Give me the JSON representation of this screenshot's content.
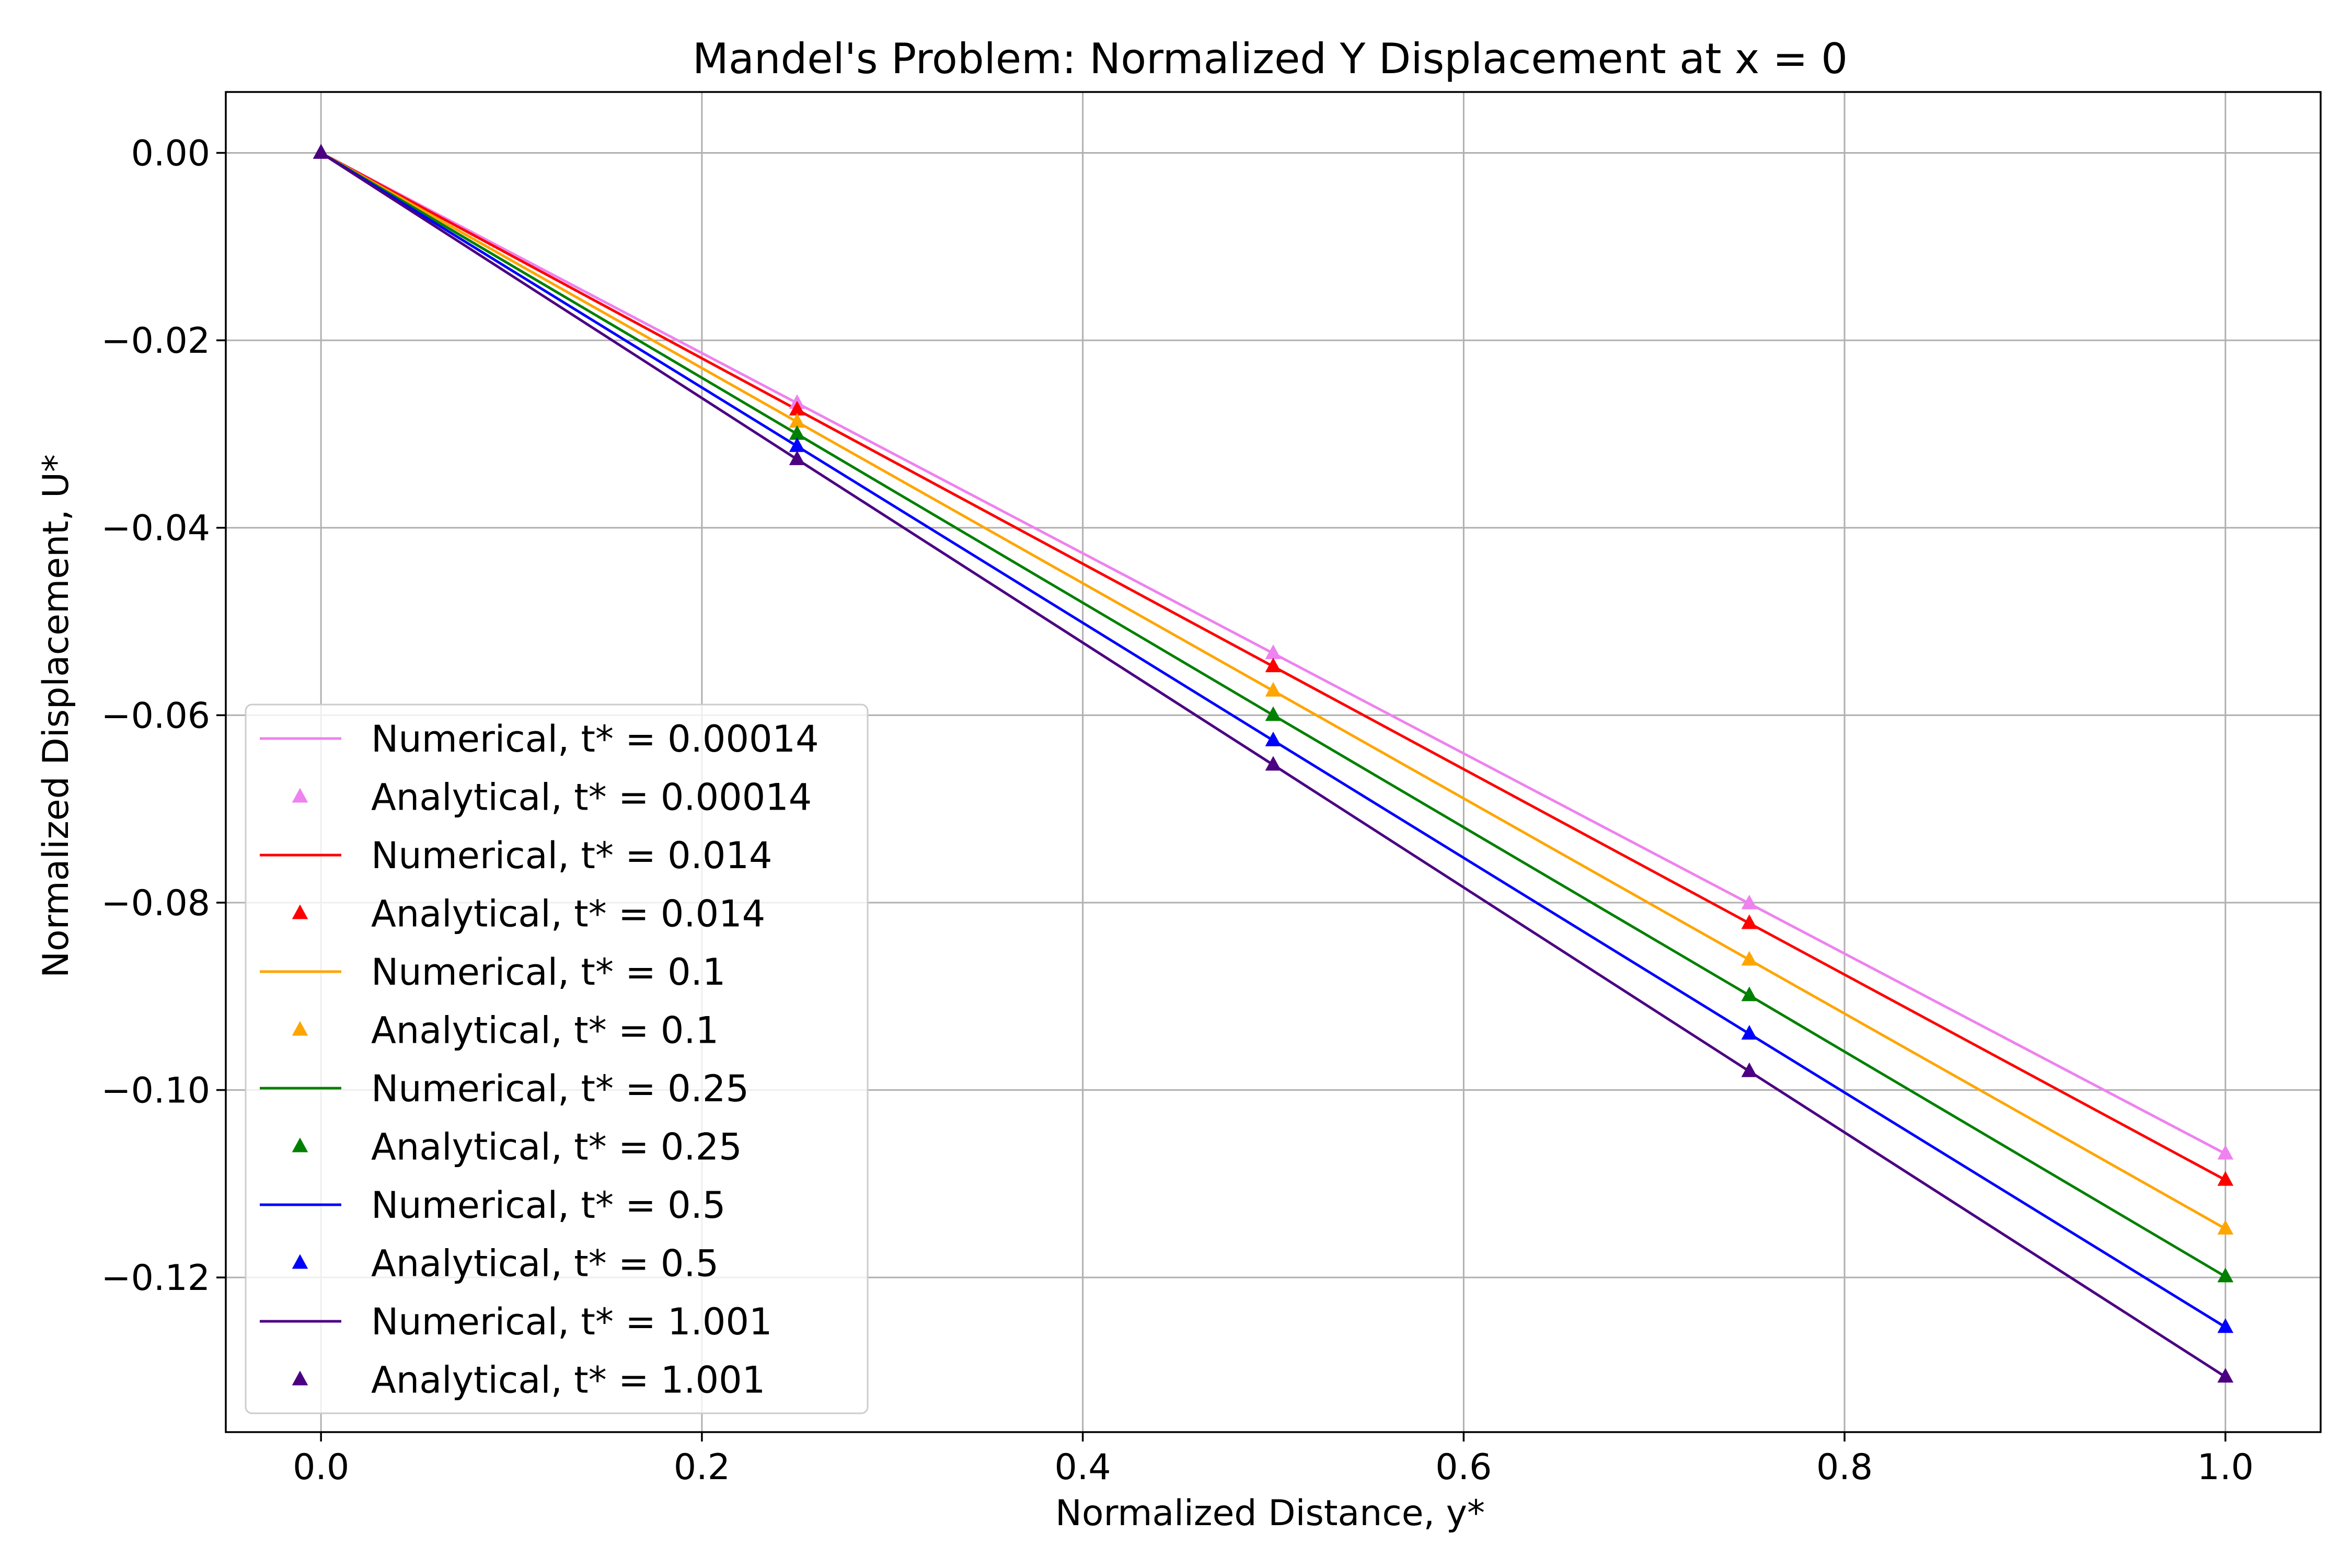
{
  "chart_data": {
    "type": "line",
    "title": "Mandel's Problem: Normalized Y Displacement at x = 0",
    "xlabel": "Normalized Distance, y*",
    "ylabel": "Normalized Displacement, U*",
    "xlim": [
      -0.05,
      1.05
    ],
    "ylim": [
      -0.1365,
      0.0065
    ],
    "xticks": [
      0.0,
      0.2,
      0.4,
      0.6,
      0.8,
      1.0
    ],
    "xtick_labels": [
      "0.0",
      "0.2",
      "0.4",
      "0.6",
      "0.8",
      "1.0"
    ],
    "yticks": [
      0.0,
      -0.02,
      -0.04,
      -0.06,
      -0.08,
      -0.1,
      -0.12
    ],
    "ytick_labels": [
      "0.00",
      "−0.02",
      "−0.04",
      "−0.06",
      "−0.08",
      "−0.10",
      "−0.12"
    ],
    "grid": true,
    "legend_position": "lower-left",
    "x": [
      0.0,
      0.25,
      0.5,
      0.75,
      1.0
    ],
    "series": [
      {
        "name": "Numerical, t* = 0.00014",
        "kind": "line",
        "color": "#ee82ee",
        "values": [
          0.0,
          -0.0267,
          -0.0534,
          -0.0801,
          -0.1068
        ]
      },
      {
        "name": "Analytical, t* = 0.00014",
        "kind": "marker",
        "marker": "triangle",
        "color": "#ee82ee",
        "values": [
          0.0,
          -0.0267,
          -0.0534,
          -0.0801,
          -0.1068
        ]
      },
      {
        "name": "Numerical, t* = 0.014",
        "kind": "line",
        "color": "#ff0000",
        "values": [
          0.0,
          -0.0274,
          -0.0548,
          -0.0822,
          -0.1096
        ]
      },
      {
        "name": "Analytical, t* = 0.014",
        "kind": "marker",
        "marker": "triangle",
        "color": "#ff0000",
        "values": [
          0.0,
          -0.0274,
          -0.0548,
          -0.0822,
          -0.1096
        ]
      },
      {
        "name": "Numerical, t* = 0.1",
        "kind": "line",
        "color": "#ffa500",
        "values": [
          0.0,
          -0.0287,
          -0.0574,
          -0.0861,
          -0.1148
        ]
      },
      {
        "name": "Analytical, t* = 0.1",
        "kind": "marker",
        "marker": "triangle",
        "color": "#ffa500",
        "values": [
          0.0,
          -0.0287,
          -0.0574,
          -0.0861,
          -0.1148
        ]
      },
      {
        "name": "Numerical, t* = 0.25",
        "kind": "line",
        "color": "#008000",
        "values": [
          0.0,
          -0.03,
          -0.06,
          -0.0899,
          -0.1199
        ]
      },
      {
        "name": "Analytical, t* = 0.25",
        "kind": "marker",
        "marker": "triangle",
        "color": "#008000",
        "values": [
          0.0,
          -0.03,
          -0.06,
          -0.0899,
          -0.1199
        ]
      },
      {
        "name": "Numerical, t* = 0.5",
        "kind": "line",
        "color": "#0000ff",
        "values": [
          0.0,
          -0.0313,
          -0.0627,
          -0.094,
          -0.1253
        ]
      },
      {
        "name": "Analytical, t* = 0.5",
        "kind": "marker",
        "marker": "triangle",
        "color": "#0000ff",
        "values": [
          0.0,
          -0.0313,
          -0.0627,
          -0.094,
          -0.1253
        ]
      },
      {
        "name": "Numerical, t* = 1.001",
        "kind": "line",
        "color": "#4b0082",
        "values": [
          0.0,
          -0.0327,
          -0.0653,
          -0.098,
          -0.1306
        ]
      },
      {
        "name": "Analytical, t* = 1.001",
        "kind": "marker",
        "marker": "triangle",
        "color": "#4b0082",
        "values": [
          0.0,
          -0.0327,
          -0.0653,
          -0.098,
          -0.1306
        ]
      }
    ]
  }
}
